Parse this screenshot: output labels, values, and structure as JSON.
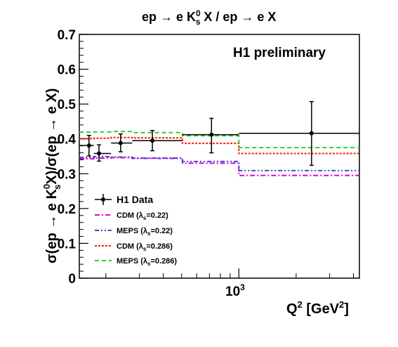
{
  "chart_data": {
    "type": "scatter",
    "title_text": "ep → e K",
    "title_sup": "0",
    "title_sub": "s",
    "title_rest": " X / ep → e X",
    "annotation": "H1 preliminary",
    "xlabel_text": "Q",
    "xlabel_sup": "2",
    "xlabel_unit": " [GeV",
    "xlabel_unit_sup": "2",
    "xlabel_end": "]",
    "ylabel_pre": "σ(ep → e K",
    "ylabel_sup": "0",
    "ylabel_sub": "s",
    "ylabel_post": "X)/σ(ep → e X)",
    "x_scale": "log",
    "xlim": [
      145,
      4300
    ],
    "ylim": [
      0,
      0.7
    ],
    "x_tick_label": "10",
    "x_tick_label_sup": "3",
    "y_ticks": [
      "0",
      "0.1",
      "0.2",
      "0.3",
      "0.4",
      "0.5",
      "0.6",
      "0.7"
    ],
    "legend": [
      {
        "key": "data",
        "label": "H1 Data"
      },
      {
        "key": "cdm022",
        "label_pre": "CDM (λ",
        "label_sub": "s",
        "label_post": "=0.22)"
      },
      {
        "key": "meps022",
        "label_pre": "MEPS (λ",
        "label_sub": "s",
        "label_post": "=0.22)"
      },
      {
        "key": "cdm0286",
        "label_pre": "CDM (λ",
        "label_sub": "s",
        "label_post": "=0.286)"
      },
      {
        "key": "meps0286",
        "label_pre": "MEPS (λ",
        "label_sub": "s",
        "label_post": "=0.286)"
      }
    ],
    "data_points": [
      {
        "x": 163,
        "xlo": 145,
        "xhi": 173,
        "y": 0.381,
        "ylo": 0.351,
        "yhi": 0.41
      },
      {
        "x": 184,
        "xlo": 173,
        "xhi": 213,
        "y": 0.358,
        "ylo": 0.336,
        "yhi": 0.383
      },
      {
        "x": 239,
        "xlo": 213,
        "xhi": 275,
        "y": 0.388,
        "ylo": 0.363,
        "yhi": 0.414
      },
      {
        "x": 351,
        "xlo": 275,
        "xhi": 505,
        "y": 0.395,
        "ylo": 0.366,
        "yhi": 0.424
      },
      {
        "x": 718,
        "xlo": 505,
        "xhi": 1000,
        "y": 0.412,
        "ylo": 0.36,
        "yhi": 0.459
      },
      {
        "x": 2410,
        "xlo": 1000,
        "xhi": 4300,
        "y": 0.416,
        "ylo": 0.324,
        "yhi": 0.507
      }
    ],
    "bin_edges": [
      145,
      173,
      213,
      275,
      505,
      1000,
      4300
    ],
    "series": [
      {
        "key": "cdm022",
        "color": "#dd00dd",
        "dash": "7,3,2,3",
        "values": [
          0.343,
          0.345,
          0.346,
          0.345,
          0.33,
          0.295
        ]
      },
      {
        "key": "meps022",
        "color": "#4444cc",
        "dash": "6,3,2,3,2,3",
        "values": [
          0.347,
          0.349,
          0.348,
          0.344,
          0.335,
          0.309
        ]
      },
      {
        "key": "cdm0286",
        "color": "#ff1a00",
        "dash": "3,2",
        "values": [
          0.401,
          0.402,
          0.404,
          0.403,
          0.387,
          0.358
        ]
      },
      {
        "key": "meps0286",
        "color": "#33cc33",
        "dash": "6,4",
        "values": [
          0.419,
          0.42,
          0.421,
          0.418,
          0.409,
          0.375
        ]
      }
    ]
  }
}
